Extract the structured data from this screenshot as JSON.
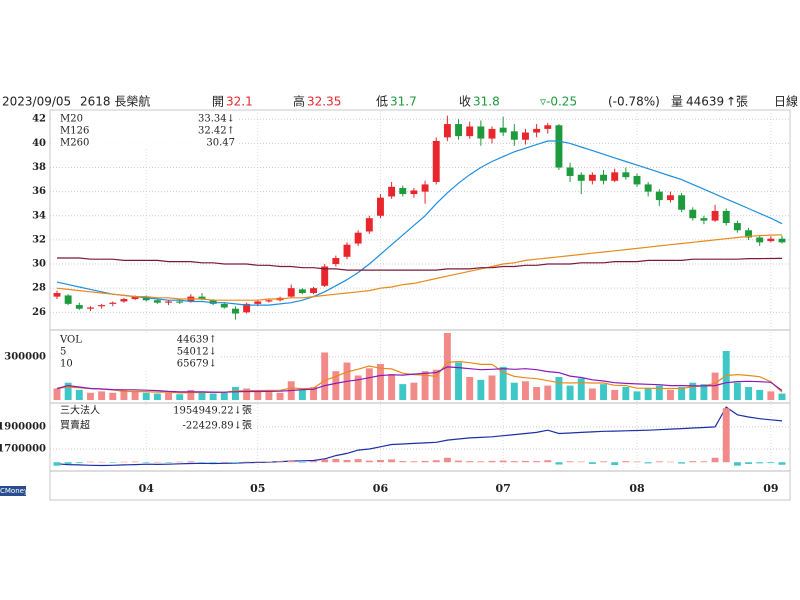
{
  "header": {
    "date": "2023/09/05",
    "stock": "2618 長榮航",
    "open_label": "開",
    "open": 32.1,
    "high_label": "高",
    "high": 32.35,
    "low_label": "低",
    "low": 31.7,
    "close_label": "收",
    "close": 31.8,
    "change": "▿-0.25",
    "change_pct": "(-0.78%)",
    "volume_label": "量",
    "volume": 44639,
    "volume_unit": "↑張",
    "period": "日線"
  },
  "watermark": "CMoney",
  "chart_data": [
    {
      "type": "candlestick",
      "up_color": "#e8262b",
      "down_color": "#1d9a3c",
      "grid": true,
      "categories": [
        null,
        null,
        null,
        null,
        null,
        null,
        null,
        null,
        "04",
        null,
        null,
        null,
        null,
        null,
        null,
        null,
        null,
        null,
        "05",
        null,
        null,
        null,
        null,
        null,
        null,
        null,
        null,
        null,
        null,
        "06",
        null,
        null,
        null,
        null,
        null,
        null,
        null,
        null,
        null,
        null,
        "07",
        null,
        null,
        null,
        null,
        null,
        null,
        null,
        null,
        null,
        null,
        null,
        "08",
        null,
        null,
        null,
        null,
        null,
        null,
        null,
        null,
        null,
        null,
        null,
        "09",
        null
      ],
      "open": [
        27.3,
        27.4,
        26.6,
        26.3,
        26.5,
        26.7,
        26.9,
        27.1,
        27.2,
        27.0,
        26.8,
        26.9,
        26.9,
        27.3,
        27.0,
        26.7,
        26.3,
        26.0,
        26.7,
        26.9,
        27.0,
        27.3,
        27.9,
        27.6,
        28.2,
        30.0,
        30.6,
        31.7,
        32.7,
        34.0,
        35.6,
        36.3,
        35.8,
        36.0,
        36.8,
        40.5,
        41.6,
        40.6,
        41.4,
        40.4,
        41.3,
        41.0,
        40.3,
        40.9,
        41.2,
        41.5,
        38.0,
        37.4,
        36.9,
        37.4,
        36.9,
        37.6,
        37.3,
        36.6,
        36.0,
        35.3,
        35.7,
        34.5,
        33.8,
        33.6,
        34.4,
        33.4,
        32.8,
        32.2,
        31.9,
        32.1
      ],
      "high": [
        27.8,
        27.5,
        26.8,
        26.5,
        26.7,
        26.9,
        27.2,
        27.4,
        27.4,
        27.1,
        27.0,
        27.1,
        27.5,
        27.6,
        27.1,
        26.8,
        26.5,
        26.8,
        27.0,
        27.1,
        27.3,
        28.3,
        28.0,
        28.1,
        30.0,
        30.7,
        31.8,
        32.8,
        34.0,
        35.8,
        36.8,
        36.5,
        36.3,
        36.9,
        40.5,
        42.3,
        42.0,
        41.8,
        41.9,
        41.4,
        42.2,
        41.6,
        41.2,
        41.6,
        41.7,
        41.6,
        38.4,
        37.6,
        37.6,
        37.8,
        37.9,
        38.0,
        37.5,
        36.8,
        36.2,
        36.0,
        35.9,
        34.7,
        34.0,
        34.9,
        34.6,
        33.6,
        33.0,
        32.4,
        32.3,
        32.35
      ],
      "low": [
        27.1,
        26.6,
        26.2,
        26.1,
        26.3,
        26.5,
        26.8,
        27.0,
        26.9,
        26.7,
        26.6,
        26.7,
        26.8,
        27.0,
        26.6,
        26.3,
        25.4,
        25.9,
        26.5,
        26.8,
        26.9,
        27.2,
        27.5,
        27.5,
        28.1,
        29.8,
        30.4,
        31.5,
        32.5,
        33.8,
        35.4,
        35.6,
        35.5,
        35.0,
        36.6,
        40.2,
        40.3,
        40.4,
        39.8,
        40.0,
        40.6,
        39.8,
        39.9,
        40.5,
        40.8,
        37.8,
        36.8,
        35.8,
        36.6,
        36.6,
        36.8,
        37.0,
        36.4,
        35.6,
        34.8,
        35.1,
        34.3,
        33.6,
        33.3,
        33.5,
        33.2,
        32.6,
        32.0,
        31.5,
        31.8,
        31.7
      ],
      "close": [
        27.6,
        26.7,
        26.3,
        26.4,
        26.6,
        26.8,
        27.1,
        27.3,
        27.0,
        26.8,
        26.9,
        26.8,
        27.3,
        27.1,
        26.7,
        26.4,
        25.9,
        26.7,
        26.9,
        27.0,
        27.2,
        28.0,
        27.6,
        28.0,
        29.8,
        30.5,
        31.6,
        32.6,
        33.8,
        35.5,
        36.4,
        35.8,
        36.1,
        36.6,
        40.2,
        41.6,
        40.6,
        41.4,
        40.4,
        41.2,
        40.9,
        40.3,
        40.9,
        41.2,
        41.5,
        38.0,
        37.3,
        36.9,
        37.4,
        36.9,
        37.6,
        37.2,
        36.6,
        36.0,
        35.3,
        35.7,
        34.5,
        33.8,
        33.6,
        34.4,
        33.4,
        32.8,
        32.2,
        31.8,
        32.1,
        31.8
      ],
      "ylim": [
        24.7,
        42.6
      ],
      "yticks": [
        26,
        28,
        30,
        32,
        34,
        36,
        38,
        40,
        42
      ],
      "series": [
        {
          "name": "M20",
          "color": "#1e8fe0",
          "value_label": "33.34↓",
          "values": [
            28.5,
            28.3,
            28.1,
            27.9,
            27.7,
            27.5,
            27.4,
            27.3,
            27.2,
            27.1,
            27.0,
            27.0,
            26.9,
            26.9,
            26.8,
            26.8,
            26.7,
            26.6,
            26.6,
            26.6,
            26.7,
            26.8,
            27.0,
            27.3,
            27.7,
            28.2,
            28.7,
            29.3,
            30.0,
            30.8,
            31.6,
            32.4,
            33.2,
            34.0,
            35.0,
            35.9,
            36.7,
            37.4,
            38.0,
            38.5,
            38.9,
            39.3,
            39.6,
            39.9,
            40.2,
            40.2,
            40.0,
            39.7,
            39.4,
            39.1,
            38.8,
            38.5,
            38.2,
            37.9,
            37.6,
            37.3,
            37.0,
            36.6,
            36.2,
            35.8,
            35.4,
            35.0,
            34.6,
            34.2,
            33.8,
            33.34
          ]
        },
        {
          "name": "M126",
          "color": "#e88a1a",
          "value_label": "32.42↑",
          "values": [
            28.0,
            27.9,
            27.8,
            27.7,
            27.6,
            27.5,
            27.4,
            27.3,
            27.3,
            27.2,
            27.2,
            27.1,
            27.1,
            27.1,
            27.0,
            27.0,
            27.0,
            27.0,
            27.0,
            27.1,
            27.1,
            27.2,
            27.2,
            27.3,
            27.4,
            27.5,
            27.6,
            27.7,
            27.8,
            28.0,
            28.1,
            28.3,
            28.4,
            28.6,
            28.8,
            29.0,
            29.2,
            29.4,
            29.6,
            29.8,
            30.0,
            30.1,
            30.3,
            30.4,
            30.5,
            30.6,
            30.7,
            30.8,
            30.9,
            31.0,
            31.1,
            31.2,
            31.3,
            31.4,
            31.5,
            31.6,
            31.7,
            31.8,
            31.9,
            32.0,
            32.1,
            32.2,
            32.3,
            32.35,
            32.4,
            32.42
          ]
        },
        {
          "name": "M260",
          "color": "#7a1a3a",
          "value_label": "30.47",
          "values": [
            30.5,
            30.5,
            30.5,
            30.4,
            30.4,
            30.4,
            30.3,
            30.3,
            30.3,
            30.3,
            30.2,
            30.2,
            30.2,
            30.1,
            30.1,
            30.0,
            30.0,
            30.0,
            29.9,
            29.9,
            29.8,
            29.8,
            29.7,
            29.7,
            29.6,
            29.6,
            29.5,
            29.5,
            29.5,
            29.5,
            29.5,
            29.5,
            29.5,
            29.5,
            29.5,
            29.6,
            29.6,
            29.6,
            29.7,
            29.7,
            29.8,
            29.8,
            29.9,
            29.9,
            30.0,
            30.0,
            30.0,
            30.1,
            30.1,
            30.1,
            30.2,
            30.2,
            30.2,
            30.3,
            30.3,
            30.3,
            30.3,
            30.4,
            30.4,
            30.4,
            30.4,
            30.4,
            30.45,
            30.45,
            30.46,
            30.47
          ]
        }
      ]
    },
    {
      "type": "bar",
      "up_color": "#f28a8a",
      "down_color": "#3ec7c7",
      "grid": true,
      "ylim": [
        0,
        465000
      ],
      "yticks": [
        300000
      ],
      "series": [
        {
          "name": "VOL",
          "type": "bar",
          "color": "#000000",
          "value_label": "44639↑",
          "values": [
            80000,
            120000,
            70000,
            50000,
            60000,
            50000,
            70000,
            60000,
            50000,
            45000,
            50000,
            40000,
            70000,
            60000,
            45000,
            50000,
            90000,
            80000,
            60000,
            55000,
            50000,
            130000,
            70000,
            90000,
            330000,
            200000,
            260000,
            170000,
            220000,
            250000,
            180000,
            110000,
            120000,
            200000,
            210000,
            465000,
            260000,
            160000,
            140000,
            170000,
            230000,
            120000,
            130000,
            90000,
            100000,
            160000,
            100000,
            150000,
            80000,
            110000,
            70000,
            90000,
            60000,
            80000,
            100000,
            70000,
            90000,
            120000,
            110000,
            190000,
            340000,
            120000,
            90000,
            70000,
            60000,
            44639
          ]
        },
        {
          "name": "5",
          "type": "line",
          "color": "#e88a1a",
          "value_label": "54012↓",
          "values": [
            80000,
            90000,
            85000,
            80000,
            76000,
            70000,
            60000,
            58000,
            58000,
            55000,
            55000,
            49000,
            51000,
            53000,
            53000,
            53000,
            63000,
            65000,
            65000,
            67000,
            67000,
            83000,
            79000,
            81000,
            136000,
            164000,
            194000,
            214000,
            236000,
            220000,
            216000,
            186000,
            176000,
            172000,
            164000,
            261000,
            267000,
            259000,
            247000,
            248000,
            192000,
            164000,
            154000,
            148000,
            134000,
            120000,
            118000,
            120000,
            118000,
            118000,
            102000,
            100000,
            82000,
            82000,
            80000,
            80000,
            80000,
            92000,
            98000,
            116000,
            170000,
            176000,
            170000,
            162000,
            126000,
            54012
          ]
        },
        {
          "name": "10",
          "type": "line",
          "color": "#8a1ab8",
          "value_label": "65679↓",
          "values": [
            80000,
            100000,
            90000,
            80000,
            76000,
            72000,
            71000,
            70000,
            68000,
            65000,
            60000,
            56000,
            56000,
            56000,
            55000,
            54000,
            57000,
            59000,
            59000,
            60000,
            61000,
            66000,
            72000,
            74000,
            100000,
            115000,
            130000,
            140000,
            155000,
            170000,
            175000,
            173000,
            180000,
            185000,
            190000,
            230000,
            225000,
            217000,
            210000,
            213000,
            217000,
            213000,
            217000,
            210000,
            197000,
            190000,
            166000,
            156000,
            140000,
            132000,
            120000,
            115000,
            112000,
            109000,
            106000,
            100000,
            100000,
            98000,
            98000,
            100000,
            120000,
            128000,
            130000,
            127000,
            123000,
            65679
          ]
        }
      ]
    },
    {
      "type": "line",
      "up_color": "#f28a8a",
      "down_color": "#3ec7c7",
      "grid": true,
      "ylim": [
        1518000,
        2090000
      ],
      "yticks": [
        1700000,
        1900000
      ],
      "y2lim": [
        -60000,
        500000
      ],
      "series": [
        {
          "name": "三大法人",
          "type": "line",
          "color": "#1c2fa8",
          "value_label": "1954949.22↓張",
          "values": [
            1565000,
            1558000,
            1555000,
            1552000,
            1550000,
            1552000,
            1555000,
            1558000,
            1562000,
            1560000,
            1562000,
            1565000,
            1568000,
            1570000,
            1568000,
            1570000,
            1572000,
            1575000,
            1578000,
            1580000,
            1585000,
            1590000,
            1592000,
            1595000,
            1610000,
            1640000,
            1660000,
            1690000,
            1700000,
            1720000,
            1740000,
            1745000,
            1750000,
            1755000,
            1760000,
            1780000,
            1790000,
            1800000,
            1805000,
            1810000,
            1820000,
            1830000,
            1840000,
            1850000,
            1870000,
            1840000,
            1845000,
            1850000,
            1855000,
            1860000,
            1862000,
            1865000,
            1868000,
            1870000,
            1875000,
            1880000,
            1885000,
            1890000,
            1895000,
            1900000,
            2080000,
            2010000,
            1990000,
            1975000,
            1965000,
            1954949.22
          ]
        },
        {
          "name": "買賣超",
          "type": "bar",
          "axis": "y2",
          "color": "#000000",
          "value_label": "-22429.89↓張",
          "values": [
            -30000,
            -15000,
            -8000,
            5000,
            3000,
            -4000,
            4000,
            6000,
            -5000,
            3000,
            -3000,
            5000,
            8000,
            -4000,
            -6000,
            3000,
            -8000,
            5000,
            4000,
            6000,
            8000,
            12000,
            -5000,
            10000,
            25000,
            30000,
            20000,
            28000,
            15000,
            20000,
            25000,
            10000,
            8000,
            12000,
            18000,
            40000,
            15000,
            10000,
            8000,
            12000,
            15000,
            10000,
            12000,
            10000,
            18000,
            -20000,
            8000,
            6000,
            -15000,
            8000,
            -25000,
            10000,
            6000,
            -10000,
            8000,
            5000,
            -12000,
            10000,
            8000,
            40000,
            480000,
            -30000,
            -15000,
            -10000,
            -8000,
            -22429.89
          ]
        }
      ]
    }
  ]
}
